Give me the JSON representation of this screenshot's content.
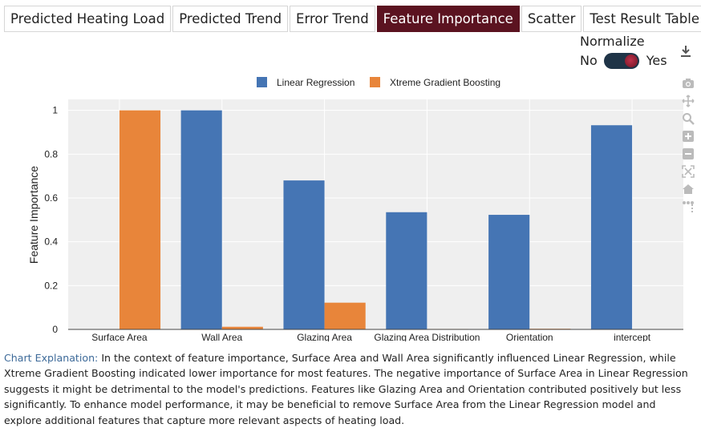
{
  "tabs": [
    {
      "label": "Predicted Heating Load",
      "active": false
    },
    {
      "label": "Predicted Trend",
      "active": false
    },
    {
      "label": "Error Trend",
      "active": false
    },
    {
      "label": "Feature Importance",
      "active": true
    },
    {
      "label": "Scatter",
      "active": false
    },
    {
      "label": "Test Result Table",
      "active": false
    }
  ],
  "normalize": {
    "label": "Normalize",
    "off_label": "No",
    "on_label": "Yes",
    "value": true
  },
  "chart_data": {
    "type": "bar",
    "title": "",
    "xlabel": "",
    "ylabel": "Feature Importance",
    "ylim": [
      0,
      1.05
    ],
    "yticks": [
      0,
      0.2,
      0.4,
      0.6,
      0.8,
      1
    ],
    "ytick_labels": [
      "0",
      "0.2",
      "0.4",
      "0.6",
      "0.8",
      "1"
    ],
    "categories": [
      "Surface Area",
      "Wall Area",
      "Glazing Area",
      "Glazing Area Distribution",
      "Orientation",
      "intercept"
    ],
    "series": [
      {
        "name": "Linear Regression",
        "color": "#4575b4",
        "values": [
          0,
          1.0,
          0.68,
          0.535,
          0.523,
          0.932
        ]
      },
      {
        "name": "Xtreme Gradient Boosting",
        "color": "#e8853a",
        "values": [
          1.0,
          0.012,
          0.122,
          0.002,
          0.003,
          0
        ]
      }
    ],
    "grid": true,
    "legend_position": "top-center"
  },
  "explanation": {
    "label": "Chart Explanation:",
    "text": " In the context of feature importance, Surface Area and Wall Area significantly influenced Linear Regression, while Xtreme Gradient Boosting indicated lower importance for most features. The negative importance of Surface Area in Linear Regression suggests it might be detrimental to the model's predictions. Features like Glazing Area and Orientation contributed positively but less significantly. To enhance model performance, it may be beneficial to remove Surface Area from the Linear Regression model and explore additional features that capture more relevant aspects of heating load."
  },
  "icons": {
    "download": "download-icon",
    "modebar": [
      "camera-icon",
      "pan-icon",
      "zoom-icon",
      "zoom-in-icon",
      "zoom-out-icon",
      "autoscale-icon",
      "reset-axes-icon",
      "spike-lines-icon"
    ]
  }
}
